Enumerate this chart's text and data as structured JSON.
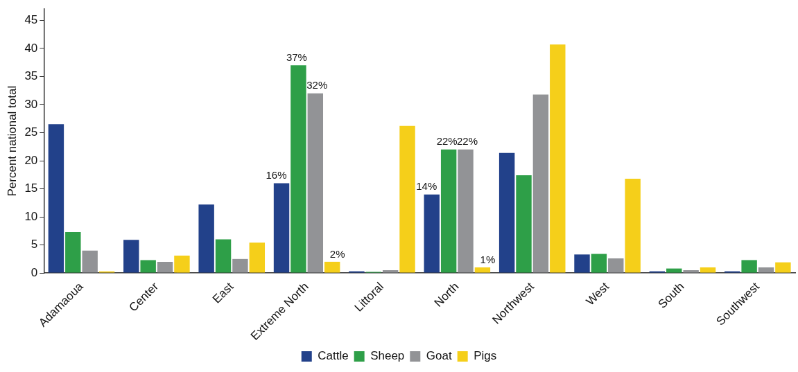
{
  "chart_data": {
    "type": "bar",
    "ylabel": "Percent national total",
    "categories": [
      "Adamaoua",
      "Center",
      "East",
      "Extreme North",
      "Littoral",
      "North",
      "Northwest",
      "West",
      "South",
      "Southwest"
    ],
    "series": [
      {
        "name": "Cattle",
        "color": "#22418a",
        "values": [
          26.5,
          5.9,
          12.2,
          16,
          0.3,
          14,
          21.4,
          3.3,
          0.3,
          0.3
        ],
        "value_labels": [
          null,
          null,
          null,
          "16%",
          null,
          "14%",
          null,
          null,
          null,
          null
        ]
      },
      {
        "name": "Sheep",
        "color": "#2e9f48",
        "values": [
          7.3,
          2.3,
          6.0,
          37,
          0.2,
          22,
          17.4,
          3.4,
          0.8,
          2.3
        ],
        "value_labels": [
          null,
          null,
          null,
          "37%",
          null,
          "22%",
          null,
          null,
          null,
          null
        ]
      },
      {
        "name": "Goat",
        "color": "#929396",
        "values": [
          4.0,
          2.0,
          2.5,
          32,
          0.5,
          22,
          31.8,
          2.6,
          0.5,
          1.0
        ],
        "value_labels": [
          null,
          null,
          null,
          "32%",
          null,
          "22%",
          null,
          null,
          null,
          null
        ]
      },
      {
        "name": "Pigs",
        "color": "#f5cf1a",
        "values": [
          0.3,
          3.1,
          5.4,
          2,
          26.2,
          1,
          40.7,
          16.8,
          1.0,
          1.9
        ],
        "value_labels": [
          null,
          null,
          null,
          "2%",
          null,
          "1%",
          null,
          null,
          null,
          null
        ]
      }
    ],
    "ylim": [
      0,
      47
    ],
    "yticks": [
      0,
      5,
      10,
      15,
      20,
      25,
      30,
      35,
      40,
      45
    ],
    "grid": false,
    "legend": "bottom"
  }
}
